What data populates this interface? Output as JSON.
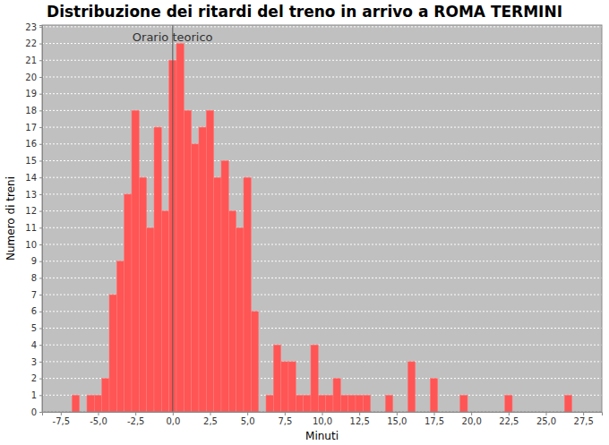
{
  "chart_data": {
    "type": "histogram",
    "title": "Distribuzione dei ritardi del treno in arrivo a ROMA TERMINI",
    "x_label": "Minuti",
    "y_label": "Numero di treni",
    "color": "#ff5555",
    "grid": true,
    "annotations": [
      {
        "text": "Orario teorico",
        "x": 0
      }
    ],
    "bins": [
      -6.75,
      -6.25,
      -5.75,
      -5.25,
      -4.75,
      -4.25,
      -3.75,
      -3.25,
      -2.75,
      -2.25,
      -1.75,
      -1.25,
      -0.75,
      -0.25,
      0.25,
      0.75,
      1.25,
      1.75,
      2.25,
      2.75,
      3.25,
      3.75,
      4.25,
      4.75,
      5.25,
      5.75,
      6.25,
      6.75,
      7.25,
      7.75,
      8.25,
      8.75,
      9.25,
      9.75,
      10.25,
      10.75,
      11.25,
      11.75,
      12.25,
      12.75,
      13.25,
      13.75,
      14.25,
      14.75,
      15.25,
      15.75,
      16.25,
      16.75,
      17.25,
      17.75,
      18.25,
      18.75,
      19.25,
      19.75,
      20.25,
      20.75,
      21.25,
      21.75,
      22.25,
      22.75,
      23.25,
      23.75,
      24.25,
      24.75,
      25.25,
      25.75,
      26.25,
      26.75
    ],
    "values": [
      1,
      0,
      1,
      1,
      2,
      7,
      9,
      13,
      18,
      14,
      11,
      17,
      12,
      21,
      22,
      18,
      16,
      17,
      18,
      14,
      15,
      12,
      11,
      14,
      6,
      0,
      1,
      4,
      3,
      3,
      1,
      1,
      4,
      1,
      1,
      2,
      1,
      1,
      1,
      1,
      0,
      0,
      1,
      0,
      0,
      3,
      0,
      0,
      2,
      0,
      0,
      0,
      1,
      0,
      0,
      0,
      0,
      0,
      1,
      0,
      0,
      0,
      0,
      0,
      0,
      0,
      1
    ],
    "xlim": [
      -8.75,
      28.75
    ],
    "xticks": [
      {
        "value": -7.5,
        "label": "-7,5"
      },
      {
        "value": -5,
        "label": "-5,0"
      },
      {
        "value": -2.5,
        "label": "-2,5"
      },
      {
        "value": 0,
        "label": "0,0"
      },
      {
        "value": 2.5,
        "label": "2,5"
      },
      {
        "value": 5,
        "label": "5,0"
      },
      {
        "value": 7.5,
        "label": "7,5"
      },
      {
        "value": 10,
        "label": "10,0"
      },
      {
        "value": 12.5,
        "label": "12,5"
      },
      {
        "value": 15,
        "label": "15,0"
      },
      {
        "value": 17.5,
        "label": "17,5"
      },
      {
        "value": 20,
        "label": "20,0"
      },
      {
        "value": 22.5,
        "label": "22,5"
      },
      {
        "value": 25,
        "label": "25,0"
      },
      {
        "value": 27.5,
        "label": "27,5"
      }
    ],
    "ylim": [
      0,
      23.1
    ],
    "yticks": [
      0,
      1,
      2,
      3,
      4,
      5,
      6,
      7,
      8,
      9,
      10,
      11,
      12,
      13,
      14,
      15,
      16,
      17,
      18,
      19,
      20,
      21,
      22,
      23
    ]
  }
}
